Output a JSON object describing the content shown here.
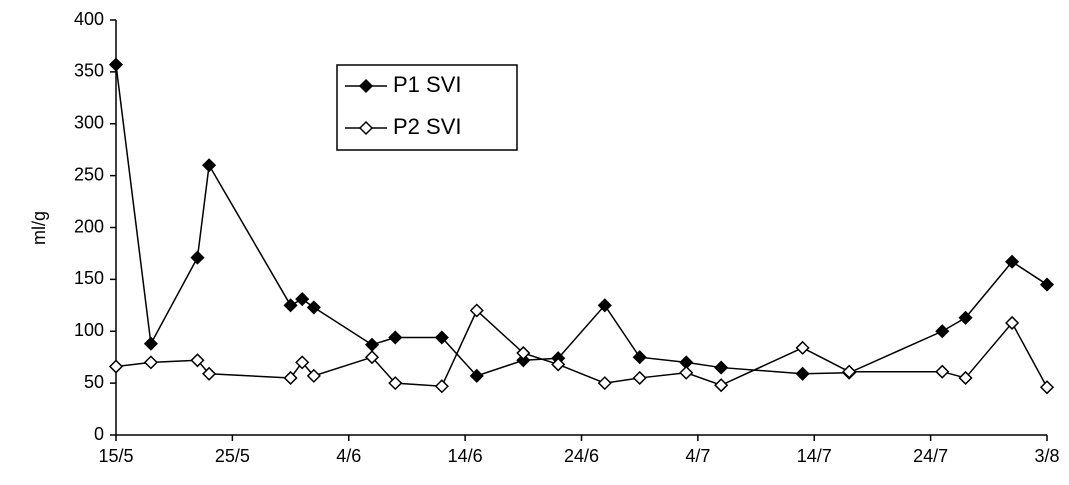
{
  "chart_data": {
    "type": "line",
    "ylabel": "ml/g",
    "x": [
      "15/5",
      "18/5",
      "22/5",
      "23/5",
      "30/5",
      "31/5",
      "1/6",
      "6/6",
      "8/6",
      "12/6",
      "15/6",
      "19/6",
      "22/6",
      "26/6",
      "29/6",
      "3/7",
      "6/7",
      "13/7",
      "17/7",
      "25/7",
      "27/7",
      "31/7",
      "3/8"
    ],
    "series": [
      {
        "name": "P1 SVI",
        "color": "#000000",
        "marker": "filled-diamond",
        "values": [
          357,
          88,
          171,
          260,
          125,
          131,
          123,
          87,
          94,
          94,
          57,
          72,
          74,
          125,
          75,
          70,
          65,
          59,
          60,
          100,
          113,
          167,
          145
        ]
      },
      {
        "name": "P2 SVI",
        "color": "#000000",
        "marker": "open-diamond",
        "values": [
          66,
          70,
          72,
          59,
          55,
          70,
          57,
          75,
          50,
          47,
          120,
          79,
          68,
          50,
          55,
          60,
          48,
          84,
          61,
          61,
          55,
          108,
          46
        ]
      }
    ],
    "xlim": [
      "15/5",
      "3/8"
    ],
    "xticks": [
      "15/5",
      "25/5",
      "4/6",
      "14/6",
      "24/6",
      "4/7",
      "14/7",
      "24/7",
      "3/8"
    ],
    "ylim": [
      0,
      400
    ],
    "yticks": [
      0,
      50,
      100,
      150,
      200,
      250,
      300,
      350,
      400
    ],
    "legend": "top-center"
  }
}
